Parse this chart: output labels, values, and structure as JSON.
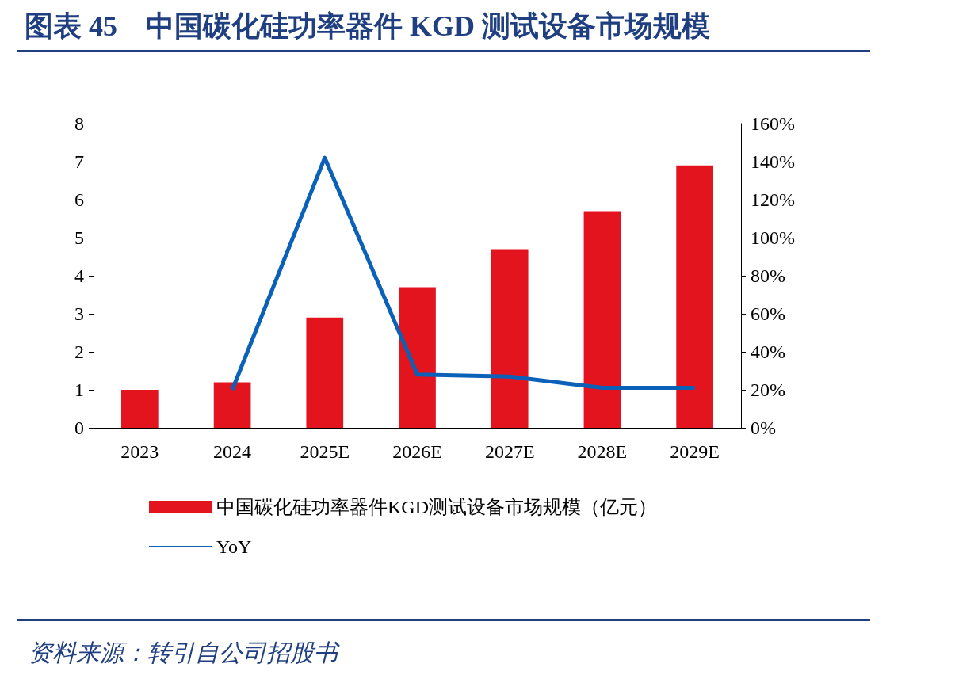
{
  "chart_data": {
    "type": "bar",
    "title": "图表 45　中国碳化硅功率器件 KGD 测试设备市场规模",
    "categories": [
      "2023",
      "2024",
      "2025E",
      "2026E",
      "2027E",
      "2028E",
      "2029E"
    ],
    "series": [
      {
        "name": "中国碳化硅功率器件KGD测试设备市场规模（亿元）",
        "color": "#e3141e",
        "values": [
          1.0,
          1.2,
          2.9,
          3.7,
          4.7,
          5.7,
          6.9
        ]
      },
      {
        "name": "YoY",
        "type": "line",
        "axis": "y2",
        "color": "#0a62b8",
        "values": [
          null,
          20,
          142,
          28,
          27,
          21,
          21
        ]
      }
    ],
    "ylim": [
      0,
      8
    ],
    "yticks": [
      0,
      1,
      2,
      3,
      4,
      5,
      6,
      7,
      8
    ],
    "y2lim": [
      0,
      160
    ],
    "y2ticks": [
      {
        "value": 0,
        "label": "0%"
      },
      {
        "value": 20,
        "label": "20%"
      },
      {
        "value": 40,
        "label": "40%"
      },
      {
        "value": 60,
        "label": "60%"
      },
      {
        "value": 80,
        "label": "80%"
      },
      {
        "value": 100,
        "label": "100%"
      },
      {
        "value": 120,
        "label": "120%"
      },
      {
        "value": 140,
        "label": "140%"
      },
      {
        "value": 160,
        "label": "160%"
      }
    ],
    "grid": false,
    "legend": "bottom",
    "marker": "none",
    "line_style": "solid",
    "annotations": [
      "资料来源：转引自公司招股书"
    ]
  }
}
